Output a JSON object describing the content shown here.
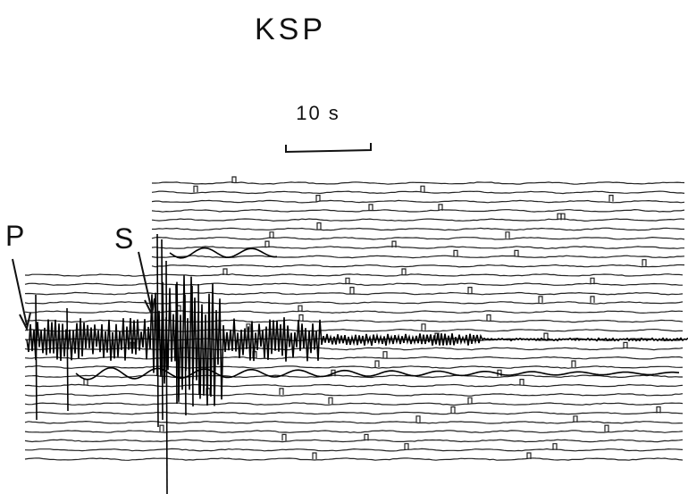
{
  "title": "KSP",
  "scale_bar": {
    "label": "10 s"
  },
  "phases": [
    {
      "label": "P"
    },
    {
      "label": "S"
    }
  ]
}
